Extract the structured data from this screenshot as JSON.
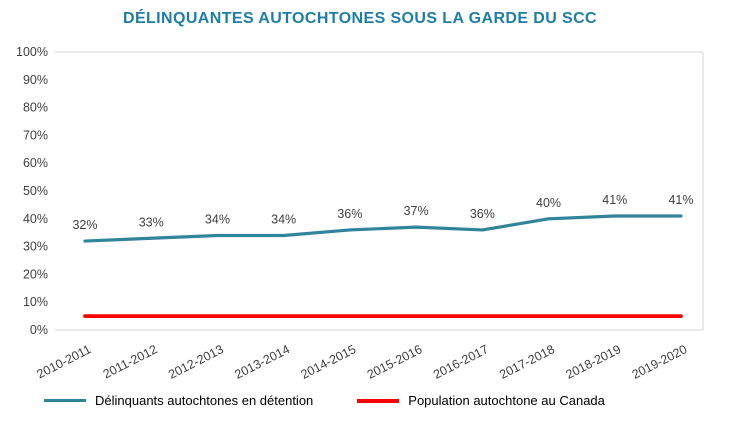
{
  "chart_data": {
    "type": "line",
    "title": "DÉLINQUANTES AUTOCHTONES SOUS LA GARDE DU SCC",
    "categories": [
      "2010-2011",
      "2011-2012",
      "2012-2013",
      "2013-2014",
      "2014-2015",
      "2015-2016",
      "2016-2017",
      "2017-2018",
      "2018-2019",
      "2019-2020"
    ],
    "series": [
      {
        "name": "Délinquants autochtones en détention",
        "color": "#31859B",
        "values": [
          32,
          33,
          34,
          34,
          36,
          37,
          36,
          40,
          41,
          41
        ],
        "data_labels": [
          "32%",
          "33%",
          "34%",
          "34%",
          "36%",
          "37%",
          "36%",
          "40%",
          "41%",
          "41%"
        ]
      },
      {
        "name": "Population autochtone au Canada",
        "color": "#FF0000",
        "values": [
          5,
          5,
          5,
          5,
          5,
          5,
          5,
          5,
          5,
          5
        ],
        "data_labels": null
      }
    ],
    "y_ticks": [
      "0%",
      "10%",
      "20%",
      "30%",
      "40%",
      "50%",
      "60%",
      "70%",
      "80%",
      "90%",
      "100%"
    ],
    "ylim": [
      0,
      100
    ],
    "grid": "top-and-bottom-lines-only",
    "legend_position": "bottom"
  },
  "colors": {
    "title": "#1F7EA6",
    "axis_text": "#404040",
    "gridline": "#D6D6D6"
  }
}
